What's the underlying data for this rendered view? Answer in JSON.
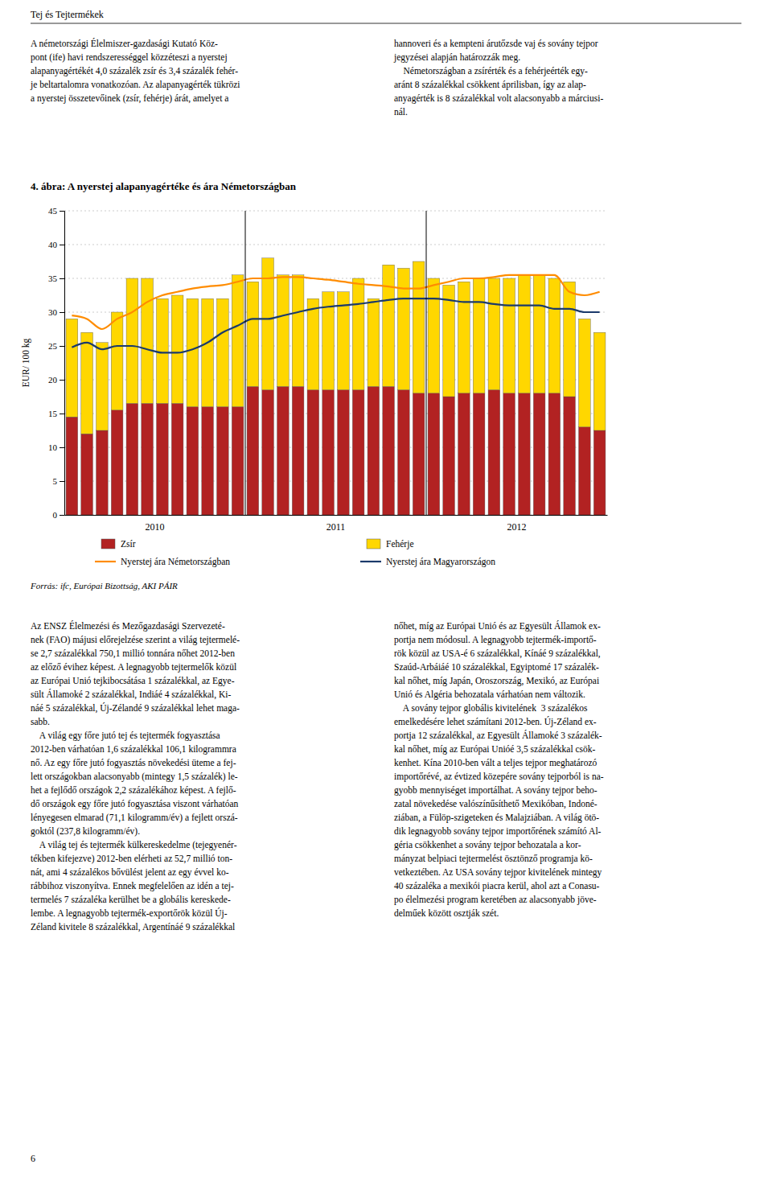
{
  "chart_data": {
    "type": "bar",
    "stacked": true,
    "title": "4. ábra: A nyerstej alapanyagértéke és ára Németországban",
    "ylabel": "EUR/ 100 kg",
    "source": "Forrás: ifc, Európai Bizottság, AKI PÁIR",
    "categories": [
      null,
      null,
      null,
      null,
      null,
      "2010",
      null,
      null,
      null,
      null,
      null,
      null,
      null,
      null,
      null,
      null,
      null,
      "2011",
      null,
      null,
      null,
      null,
      null,
      null,
      null,
      null,
      null,
      null,
      null,
      "2012",
      null,
      null,
      null,
      null,
      null,
      null
    ],
    "series": [
      {
        "name": "Zsír",
        "color": "#B22222",
        "values": [
          14.5,
          12.0,
          12.5,
          15.5,
          16.5,
          16.5,
          16.5,
          16.5,
          16.0,
          16.0,
          16.0,
          16.0,
          19.0,
          18.5,
          19.0,
          19.0,
          18.5,
          18.5,
          18.5,
          18.5,
          19.0,
          19.0,
          18.5,
          18.0,
          18.0,
          17.5,
          18.0,
          18.0,
          18.5,
          18.0,
          18.0,
          18.0,
          18.0,
          17.5,
          13.0,
          12.5
        ]
      },
      {
        "name": "Fehérje",
        "color": "#FFD700",
        "values": [
          14.5,
          15.0,
          13.0,
          14.5,
          18.5,
          18.5,
          15.5,
          16.0,
          16.0,
          16.0,
          16.0,
          19.5,
          15.5,
          19.5,
          16.5,
          16.5,
          13.5,
          14.5,
          14.5,
          16.5,
          13.0,
          18.0,
          18.0,
          19.5,
          17.0,
          16.5,
          16.5,
          17.0,
          16.5,
          17.0,
          17.5,
          17.5,
          17.0,
          17.0,
          16.0,
          14.5
        ]
      },
      {
        "name": "Nyerstej ára Németországban",
        "type": "line",
        "color": "#FF8C00",
        "values": [
          29.5,
          29.0,
          27.5,
          29.0,
          30.0,
          31.5,
          32.5,
          33.0,
          33.5,
          33.8,
          34.0,
          34.5,
          35.0,
          35.0,
          35.2,
          35.2,
          35.0,
          34.8,
          34.5,
          34.2,
          34.0,
          33.8,
          33.5,
          33.5,
          34.0,
          34.5,
          35.0,
          35.0,
          35.2,
          35.5,
          35.5,
          35.5,
          35.5,
          33.0,
          32.5,
          33.0
        ]
      },
      {
        "name": "Nyerstej ára Magyarországon",
        "type": "line",
        "color": "#1B3A6B",
        "values": [
          24.8,
          25.5,
          24.5,
          25.0,
          25.0,
          24.5,
          24.0,
          24.0,
          24.5,
          25.5,
          27.0,
          28.0,
          29.0,
          29.0,
          29.5,
          30.0,
          30.5,
          30.8,
          31.0,
          31.2,
          31.5,
          31.8,
          32.0,
          32.0,
          32.0,
          31.8,
          31.5,
          31.5,
          31.2,
          31.0,
          31.0,
          31.0,
          30.5,
          30.5,
          30.0,
          30.0
        ]
      }
    ],
    "ylim": [
      0,
      45
    ],
    "yticks": [
      0,
      5,
      10,
      15,
      20,
      25,
      30,
      35,
      40,
      45
    ],
    "grid": true,
    "legend": "bottom"
  },
  "page_text": {
    "header": "Tej és Tejtermékek",
    "top_left": "A németországi Élelmiszer-gazdasági Kutató Köz-\npont (ife) havi rendszerességgel közzéteszi a nyerstej\nalapanyagértékét 4,0 százalék zsír és 3,4 százalék fehér-\nje beltartalomra vonatkozóan. Az alapanyagérték tükrözi\na nyerstej összetevőinek (zsír, fehérje) árát, amelyet a",
    "top_right": "hannoveri és a kempteni árutőzsde vaj és sovány tejpor\njegyzései alapján határozzák meg.\n    Németországban a zsírérték és a fehérjeérték egy-\naránt 8 százalékkal csökkent áprilisban, így az alap-\nanyagérték is 8 százalékkal volt alacsonyabb a márciusi-\nnál.",
    "bottom_left": "Az ENSZ Élelmezési és Mezőgazdasági Szervezeté-\nnek (FAO) májusi előrejelzése szerint a világ tejtermelé-\nse 2,7 százalékkal 750,1 millió tonnára nőhet 2012-ben\naz előző évihez képest. A legnagyobb tejtermelők közül\naz Európai Unió tejkibocsátása 1 százalékkal, az Egye-\nsült Államoké 2 százalékkal, Indiáé 4 százalékkal, Ki-\nnáé 5 százalékkal, Új-Zélandé 9 százalékkal lehet maga-\nsabb.\n    A világ egy főre jutó tej és tejtermék fogyasztása\n2012-ben várhatóan 1,6 százalékkal 106,1 kilogrammra\nnő. Az egy főre jutó fogyasztás növekedési üteme a fej-\nlett országokban alacsonyabb (mintegy 1,5 százalék) le-\nhet a fejlődő országok 2,2 százalékához képest. A fejlő-\ndő országok egy főre jutó fogyasztása viszont várhatóan\nlényegesen elmarad (71,1 kilogramm/év) a fejlett orszá-\ngoktól (237,8 kilogramm/év).\n    A világ tej és tejtermék külkereskedelme (tejegyenér-\ntékben kifejezve) 2012-ben elérheti az 52,7 millió ton-\nnát, ami 4 százalékos bővülést jelent az egy évvel ko-\nrábbihoz viszonyítva. Ennek megfelelően az idén a tej-\ntermelés 7 százaléka kerülhet be a globális kereskede-\nlembe. A legnagyobb tejtermék-exportőrök közül Új-\nZéland kivitele 8 százalékkal, Argentínáé 9 százalékkal",
    "bottom_right": "nőhet, míg az Európai Unió és az Egyesült Államok ex-\nportja nem módosul. A legnagyobb tejtermék-importő-\nrök közül az USA-é 6 százalékkal, Kínáé 9 százalékkal,\nSzaúd-Arbáiáé 10 százalékkal, Egyiptomé 17 százalék-\nkal nőhet, míg Japán, Oroszország, Mexikó, az Európai\nUnió és Algéria behozatala várhatóan nem változik.\n    A sovány tejpor globális kivitelének  3 százalékos\nemelkedésére lehet számítani 2012-ben. Új-Zéland ex-\nportja 12 százalékkal, az Egyesült Államoké 3 százalék-\nkal nőhet, míg az Európai Unióé 3,5 százalékkal csök-\nkenhet. Kína 2010-ben vált a teljes tejpor meghatározó\nimportőrévé, az évtized közepére sovány tejporból is na-\ngyobb mennyiséget importálhat. A sovány tejpor beho-\nzatal növekedése valószínűsíthető Mexikóban, Indoné-\nziában, a Fülöp-szigeteken és Malajziában. A világ ötö-\ndik legnagyobb sovány tejpor importőrének számító Al-\ngéria csökkenhet a sovány tejpor behozatala a kor-\nmányzat belpiaci tejtermelést ösztönző programja kö-\nvetkeztében. Az USA sovány tejpor kivitelének mintegy\n40 százaléka a mexikói piacra kerül, ahol azt a Conasu-\npo élelmezési program keretében az alacsonyabb jöve-\ndelműek között osztják szét.",
    "page_number": "6"
  }
}
